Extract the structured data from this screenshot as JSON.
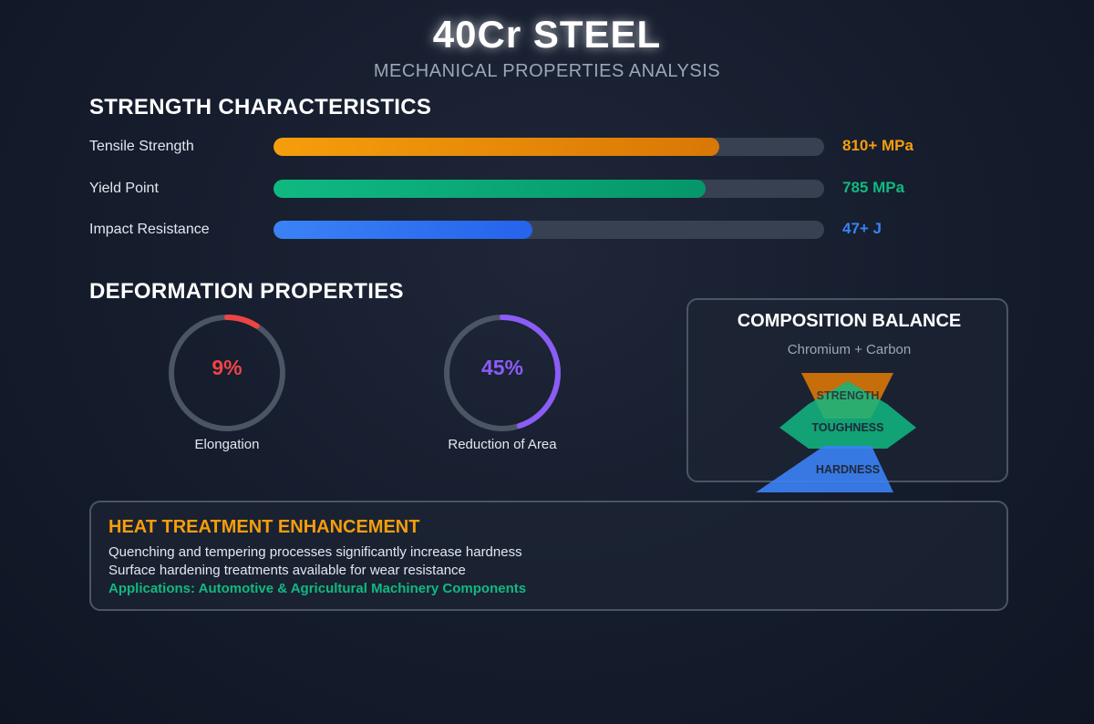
{
  "header": {
    "title": "40Cr STEEL",
    "subtitle": "MECHANICAL PROPERTIES ANALYSIS"
  },
  "strength": {
    "title": "STRENGTH CHARACTERISTICS",
    "bars": [
      {
        "label": "Tensile Strength",
        "value": "810+ MPa",
        "fill_fraction": 0.81,
        "color": "#f59e0b",
        "color_end": "#d97706"
      },
      {
        "label": "Yield Point",
        "value": "785 MPa",
        "fill_fraction": 0.785,
        "color": "#10b981",
        "color_end": "#059669"
      },
      {
        "label": "Impact Resistance",
        "value": "47+ J",
        "fill_fraction": 0.47,
        "color": "#3b82f6",
        "color_end": "#2563eb"
      }
    ]
  },
  "deformation": {
    "title": "DEFORMATION PROPERTIES",
    "rings": [
      {
        "label": "Elongation",
        "value": "9%",
        "fraction": 0.09,
        "color": "#ef4444"
      },
      {
        "label": "Reduction of Area",
        "value": "45%",
        "fraction": 0.45,
        "color": "#8b5cf6"
      }
    ]
  },
  "composition": {
    "title": "COMPOSITION BALANCE",
    "subtitle": "Chromium + Carbon",
    "shapes": [
      {
        "label": "STRENGTH",
        "color": "#d97706"
      },
      {
        "label": "TOUGHNESS",
        "color": "#10b981"
      },
      {
        "label": "HARDNESS",
        "color": "#3b82f6"
      }
    ]
  },
  "heat": {
    "title": "HEAT TREATMENT ENHANCEMENT",
    "lines": [
      "Quenching and tempering processes significantly increase hardness",
      "Surface hardening treatments available for wear resistance"
    ],
    "applications": "Applications: Automotive & Agricultural Machinery Components"
  }
}
